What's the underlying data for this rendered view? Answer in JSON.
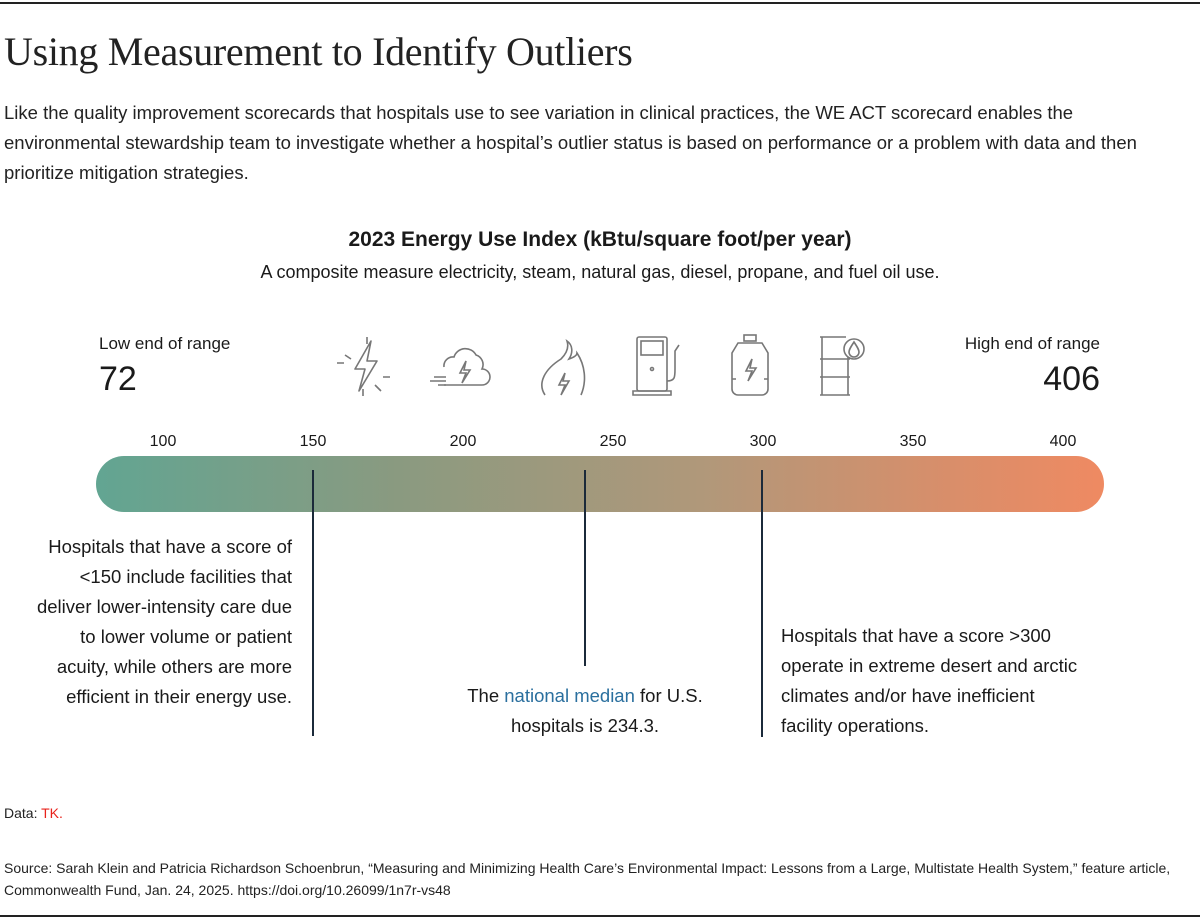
{
  "title": "Using Measurement to Identify Outliers",
  "intro": "Like the quality improvement scorecards that hospitals use to see variation in clinical practices, the WE ACT scorecard enables the environmental stewardship team to investigate whether a hospital’s outlier status is based on performance or a problem with data and then prioritize mitigation strategies.",
  "chart": {
    "title": "2023 Energy Use Index (kBtu/square foot/per year)",
    "subtitle": "A composite measure electricity, steam, natural gas, diesel, propane, and fuel oil use.",
    "low_label": "Low end of range",
    "low_value": "72",
    "high_label": "High end of range",
    "high_value": "406",
    "icons": [
      "electricity-icon",
      "steam-icon",
      "natural-gas-icon",
      "diesel-pump-icon",
      "propane-tank-icon",
      "fuel-oil-barrel-icon"
    ],
    "ticks": [
      "100",
      "150",
      "200",
      "250",
      "300",
      "350",
      "400"
    ],
    "gradient_colors": [
      "#62a592",
      "#ef8a62"
    ],
    "markers": [
      150,
      234.3,
      300
    ],
    "note_low": "Hospitals that have a score of <150 include facilities that deliver lower-intensity care due to lower volume or patient acuity, while others are more efficient in their energy use.",
    "note_median_pre": "The ",
    "note_median_link": "national median",
    "note_median_post": " for U.S. hospitals is 234.3.",
    "note_high": "Hospitals that have a score >300 operate in extreme desert and arctic climates and/or have inefficient facility operations."
  },
  "footer": {
    "data_label": "Data: ",
    "data_value": "TK.",
    "source": "Source: Sarah Klein and Patricia Richardson Schoenbrun, “Measuring and Minimizing Health Care’s Environmental Impact: Lessons from a Large, Multistate Health System,” feature article, Commonwealth Fund, Jan. 24, 2025. https://doi.org/10.26099/1n7r-vs48"
  }
}
